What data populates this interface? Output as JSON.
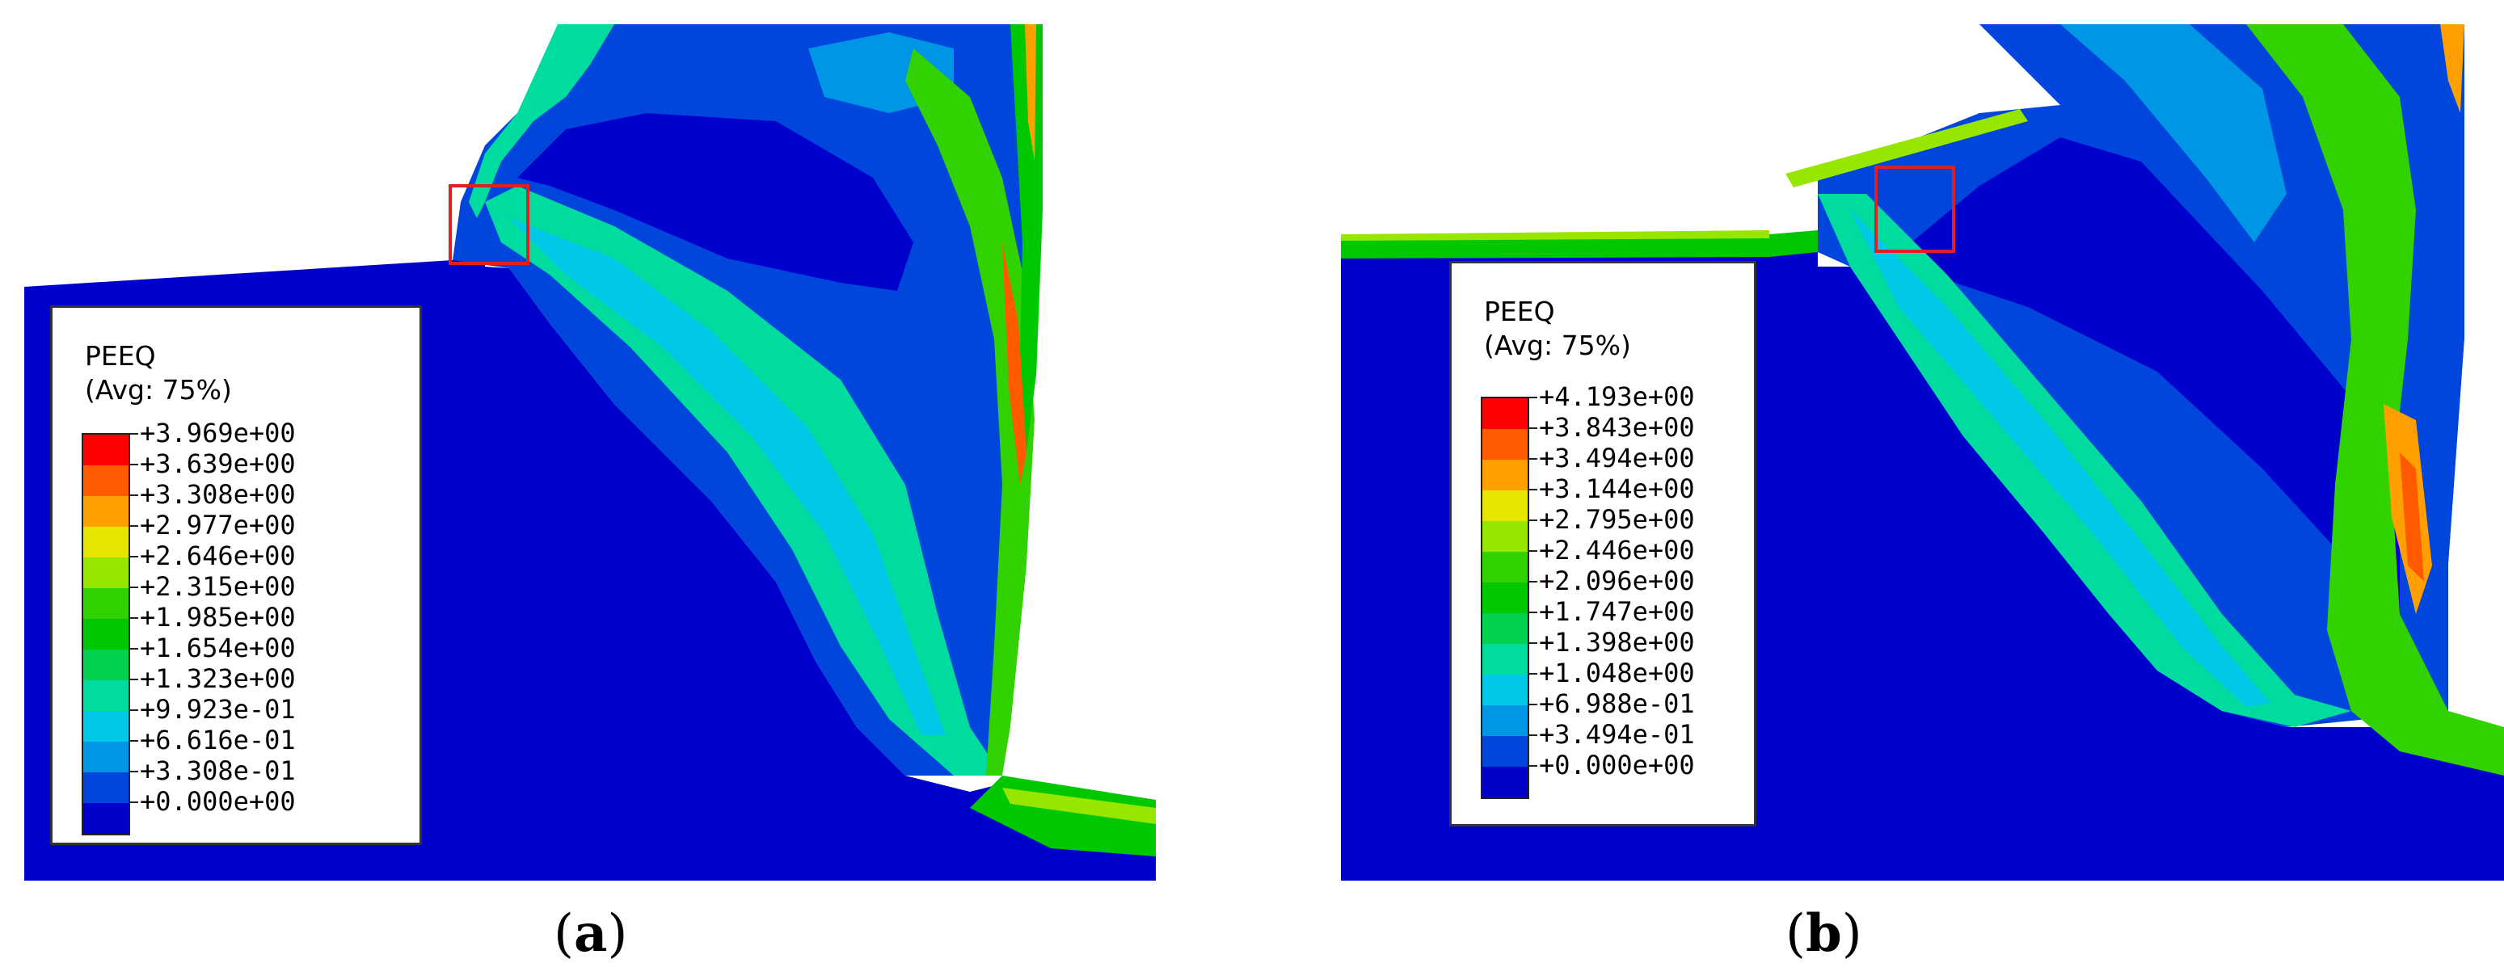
{
  "panels": [
    {
      "id": "a",
      "caption_open": "(",
      "caption_letter": "a",
      "caption_close": ")",
      "legend": {
        "title": "PEEQ",
        "subtitle": "(Avg: 75%)",
        "labels": [
          "+3.969e+00",
          "+3.639e+00",
          "+3.308e+00",
          "+2.977e+00",
          "+2.646e+00",
          "+2.315e+00",
          "+1.985e+00",
          "+1.654e+00",
          "+1.323e+00",
          "+9.923e-01",
          "+6.616e-01",
          "+3.308e-01",
          "+0.000e+00"
        ]
      }
    },
    {
      "id": "b",
      "caption_open": "(",
      "caption_letter": "b",
      "caption_close": ")",
      "legend": {
        "title": "PEEQ",
        "subtitle": "(Avg: 75%)",
        "labels": [
          "+4.193e+00",
          "+3.843e+00",
          "+3.494e+00",
          "+3.144e+00",
          "+2.795e+00",
          "+2.446e+00",
          "+2.096e+00",
          "+1.747e+00",
          "+1.398e+00",
          "+1.048e+00",
          "+6.988e-01",
          "+3.494e-01",
          "+0.000e+00"
        ]
      }
    }
  ],
  "colormap": [
    "#ff0000",
    "#ff5a00",
    "#ffa000",
    "#e6e600",
    "#96e600",
    "#32d200",
    "#00c800",
    "#00d250",
    "#00dca0",
    "#00c8e6",
    "#0096e6",
    "#0046dc",
    "#0000c8"
  ],
  "colors": {
    "base_blue": "#0000cc",
    "roi_red": "#e02020"
  }
}
